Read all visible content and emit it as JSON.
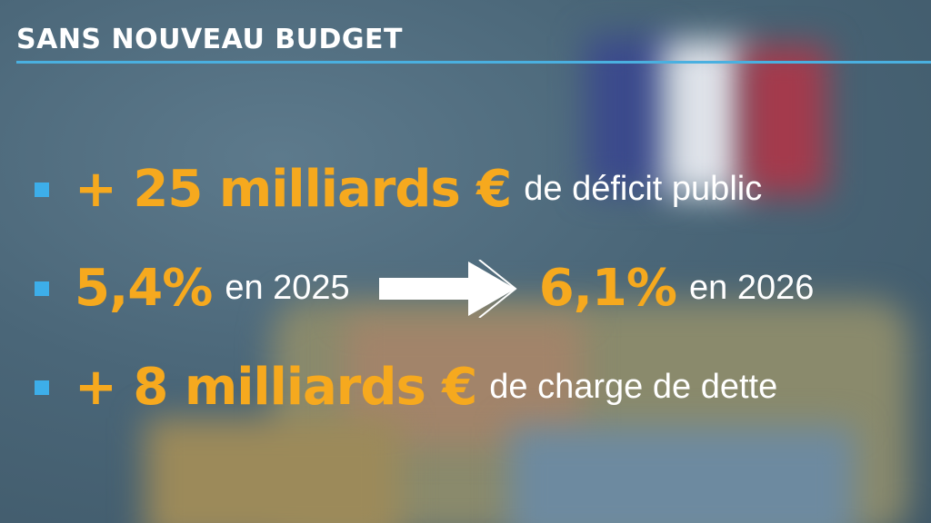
{
  "header": {
    "title": "SANS NOUVEAU BUDGET"
  },
  "rows": [
    {
      "highlight": "+ 25 milliards €",
      "text": "de déficit public"
    },
    {
      "highlight": "5,4%",
      "text": "en 2025",
      "arrow": "arrow-right-icon",
      "highlight2": "6,1%",
      "text2": "en 2026"
    },
    {
      "highlight": "+ 8 milliards €",
      "text": "de charge de dette"
    }
  ],
  "colors": {
    "accent": "#f6a91e",
    "bullet": "#3daee9",
    "rule": "#4ab0e0",
    "text": "#ffffff"
  }
}
